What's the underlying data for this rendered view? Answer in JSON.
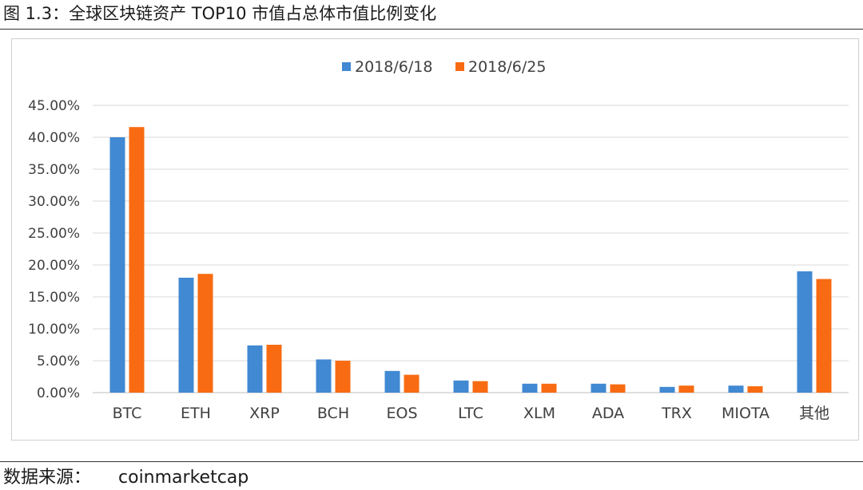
{
  "figure_title": "图 1.3：全球区块链资产 TOP10 市值占总体市值比例变化",
  "source_label": "数据来源：",
  "source_value": "coinmarketcap",
  "chart_data": {
    "type": "bar",
    "categories": [
      "BTC",
      "ETH",
      "XRP",
      "BCH",
      "EOS",
      "LTC",
      "XLM",
      "ADA",
      "TRX",
      "MIOTA",
      "其他"
    ],
    "series": [
      {
        "name": "2018/6/18",
        "color": "#4189d2",
        "values": [
          40.0,
          18.0,
          7.4,
          5.2,
          3.4,
          1.9,
          1.4,
          1.4,
          0.9,
          1.1,
          19.0
        ]
      },
      {
        "name": "2018/6/25",
        "color": "#f86b12",
        "values": [
          41.6,
          18.6,
          7.5,
          5.0,
          2.8,
          1.8,
          1.4,
          1.3,
          1.1,
          1.0,
          17.8
        ]
      }
    ],
    "yticks": [
      "0.00%",
      "5.00%",
      "10.00%",
      "15.00%",
      "20.00%",
      "25.00%",
      "30.00%",
      "35.00%",
      "40.00%",
      "45.00%"
    ],
    "ylim": [
      0,
      45
    ],
    "grid": true,
    "legend_position": "top-center",
    "title": "",
    "xlabel": "",
    "ylabel": ""
  }
}
